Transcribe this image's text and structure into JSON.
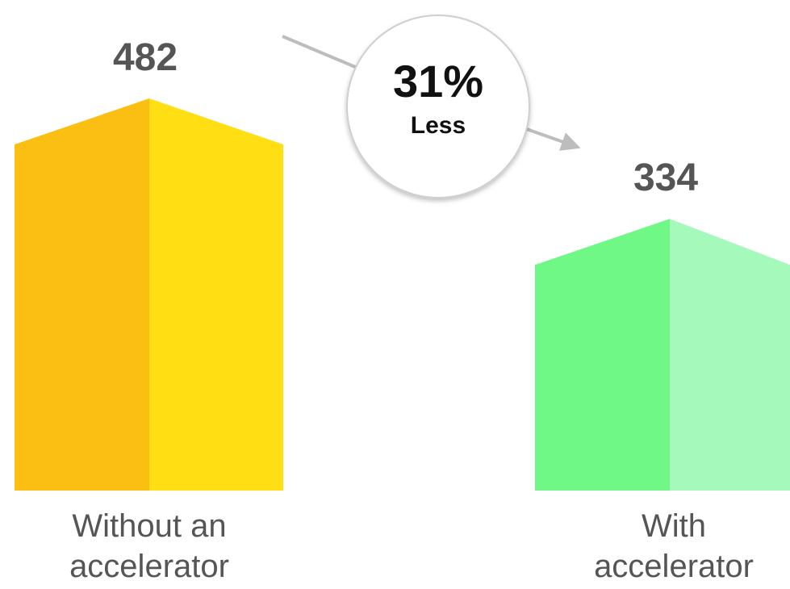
{
  "chart_data": {
    "type": "bar",
    "categories": [
      [
        "Without an",
        "accelerator"
      ],
      [
        "With",
        "accelerator"
      ]
    ],
    "values": [
      482,
      334
    ],
    "ylim": [
      0,
      482
    ],
    "grid": false,
    "data_labels": [
      "482",
      "334"
    ],
    "colors": {
      "bar_1_left": "#FBBF14",
      "bar_1_right": "#FFDE14",
      "bar_2_left": "#6FF885",
      "bar_2_right": "#A4F9BB",
      "text": "#555555",
      "badge_text": "#111111",
      "arrow": "#BDBDBD"
    },
    "annotation": {
      "value": "31%",
      "text": "Less"
    }
  }
}
